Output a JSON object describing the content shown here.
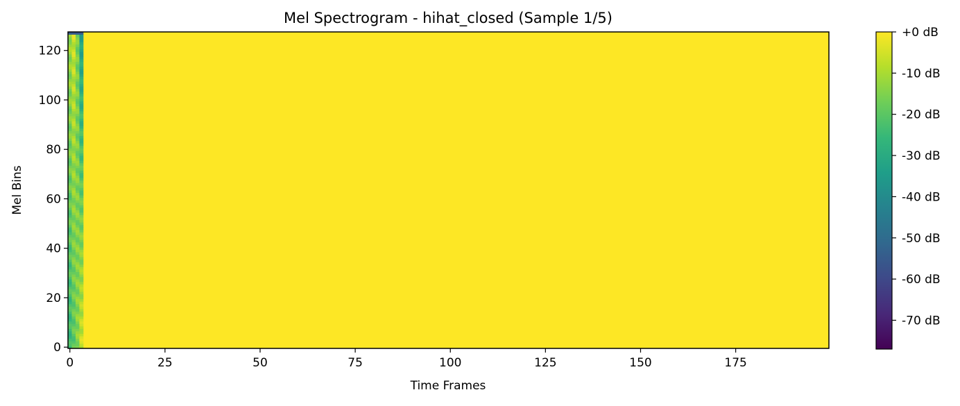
{
  "chart_data": {
    "type": "heatmap",
    "title": "Mel Spectrogram - hihat_closed (Sample 1/5)",
    "xlabel": "Time Frames",
    "ylabel": "Mel Bins",
    "xlim": [
      0,
      199
    ],
    "ylim": [
      0,
      127
    ],
    "xticks": [
      0,
      25,
      50,
      75,
      100,
      125,
      150,
      175
    ],
    "yticks": [
      0,
      20,
      40,
      60,
      80,
      100,
      120
    ],
    "colormap": "viridis",
    "value_range_db": [
      -77,
      0
    ],
    "colorbar": {
      "ticks": [
        0,
        -10,
        -20,
        -30,
        -40,
        -50,
        -60,
        -70
      ],
      "tick_labels": [
        "+0 dB",
        "-10 dB",
        "-20 dB",
        "-30 dB",
        "-40 dB",
        "-50 dB",
        "-60 dB",
        "-70 dB"
      ]
    },
    "fill_value_db": 0,
    "onset_frames": [
      {
        "frame": 0,
        "db_bottom": -25,
        "db_top": -12
      },
      {
        "frame": 1,
        "db_bottom": -20,
        "db_top": -6
      },
      {
        "frame": 2,
        "db_bottom": -14,
        "db_top": -16
      },
      {
        "frame": 3,
        "db_bottom": -6,
        "db_top": -33
      }
    ],
    "top_row_edge_db": -55
  },
  "colors": {
    "background": "#ffffff",
    "axis": "#000000",
    "viridis_stops": [
      "#440154",
      "#482878",
      "#3e4989",
      "#31688e",
      "#26828e",
      "#1f9e89",
      "#35b779",
      "#6ece58",
      "#b5de2b",
      "#fde725"
    ]
  }
}
